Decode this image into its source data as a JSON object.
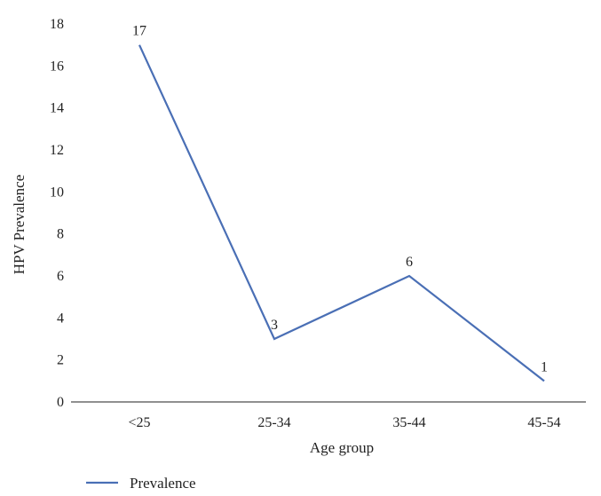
{
  "chart_data": {
    "type": "line",
    "title": "",
    "xlabel": "Age group",
    "ylabel": "HPV Prevalence",
    "categories": [
      "<25",
      "25-34",
      "35-44",
      "45-54"
    ],
    "series": [
      {
        "name": "Prevalence",
        "values": [
          17,
          3,
          6,
          1
        ],
        "color": "#4a6fb5"
      }
    ],
    "data_labels": [
      "17",
      "3",
      "6",
      "1"
    ],
    "ylim": [
      0,
      18
    ],
    "yticks": [
      "0",
      "2",
      "4",
      "6",
      "8",
      "10",
      "12",
      "14",
      "16",
      "18"
    ],
    "grid": false,
    "legend_position": "bottom-left"
  }
}
